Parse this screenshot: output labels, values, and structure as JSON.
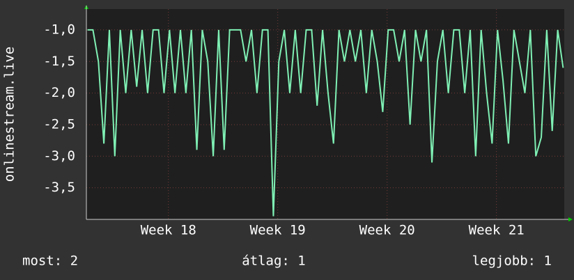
{
  "chart_data": {
    "type": "line",
    "ylabel": "onlinestream.live",
    "x": [
      17.26,
      17.31,
      17.36,
      17.41,
      17.46,
      17.51,
      17.56,
      17.61,
      17.66,
      17.71,
      17.76,
      17.81,
      17.86,
      17.91,
      17.96,
      18.01,
      18.06,
      18.11,
      18.16,
      18.21,
      18.26,
      18.31,
      18.36,
      18.41,
      18.46,
      18.51,
      18.56,
      18.61,
      18.66,
      18.71,
      18.76,
      18.81,
      18.86,
      18.91,
      18.96,
      19.01,
      19.06,
      19.11,
      19.16,
      19.21,
      19.26,
      19.31,
      19.36,
      19.41,
      19.46,
      19.51,
      19.56,
      19.61,
      19.66,
      19.71,
      19.76,
      19.81,
      19.86,
      19.91,
      19.96,
      20.01,
      20.06,
      20.11,
      20.16,
      20.21,
      20.26,
      20.31,
      20.36,
      20.41,
      20.46,
      20.51,
      20.56,
      20.61,
      20.66,
      20.71,
      20.76,
      20.81,
      20.86,
      20.91,
      20.96,
      21.01,
      21.06,
      21.11,
      21.16,
      21.21,
      21.26,
      21.31,
      21.36,
      21.41,
      21.46,
      21.51,
      21.56,
      21.61
    ],
    "series": [
      {
        "color": "#7ff0b4",
        "values": [
          -1.0,
          -1.0,
          -1.5,
          -2.8,
          -1.0,
          -3.0,
          -1.0,
          -2.0,
          -1.0,
          -1.9,
          -1.0,
          -2.0,
          -1.0,
          -1.0,
          -2.0,
          -1.0,
          -2.0,
          -1.0,
          -2.0,
          -1.0,
          -2.9,
          -1.0,
          -1.5,
          -3.0,
          -1.0,
          -2.9,
          -1.0,
          -1.0,
          -1.0,
          -1.5,
          -1.0,
          -2.0,
          -1.0,
          -1.0,
          -3.95,
          -1.5,
          -1.0,
          -2.0,
          -1.0,
          -2.0,
          -1.0,
          -1.0,
          -2.2,
          -1.0,
          -2.0,
          -2.8,
          -1.0,
          -1.5,
          -1.0,
          -1.5,
          -1.0,
          -2.0,
          -1.0,
          -1.5,
          -2.3,
          -1.0,
          -1.0,
          -1.5,
          -1.0,
          -2.5,
          -1.0,
          -1.5,
          -1.0,
          -3.1,
          -1.5,
          -1.0,
          -2.0,
          -1.0,
          -1.0,
          -2.0,
          -1.0,
          -3.0,
          -1.0,
          -2.0,
          -2.8,
          -1.0,
          -1.8,
          -2.8,
          -1.0,
          -1.5,
          -2.0,
          -1.0,
          -3.0,
          -2.7,
          -1.0,
          -2.6,
          -1.0,
          -1.6
        ]
      }
    ],
    "xlim": [
      17.25,
      21.62
    ],
    "xticks": [
      {
        "value": 18,
        "label": "Week 18"
      },
      {
        "value": 19,
        "label": "Week 19"
      },
      {
        "value": 20,
        "label": "Week 20"
      },
      {
        "value": 21,
        "label": "Week 21"
      }
    ],
    "ylim": [
      -4.0,
      -0.67
    ],
    "yticks": [
      {
        "value": -1.0,
        "label": "-1,0"
      },
      {
        "value": -1.5,
        "label": "-1,5"
      },
      {
        "value": -2.0,
        "label": "-2,0"
      },
      {
        "value": -2.5,
        "label": "-2,5"
      },
      {
        "value": -3.0,
        "label": "-3,0"
      },
      {
        "value": -3.5,
        "label": "-3,5"
      }
    ],
    "grid": true,
    "footer": [
      "most: 2",
      "átlag: 1",
      "legjobb: 1"
    ]
  }
}
